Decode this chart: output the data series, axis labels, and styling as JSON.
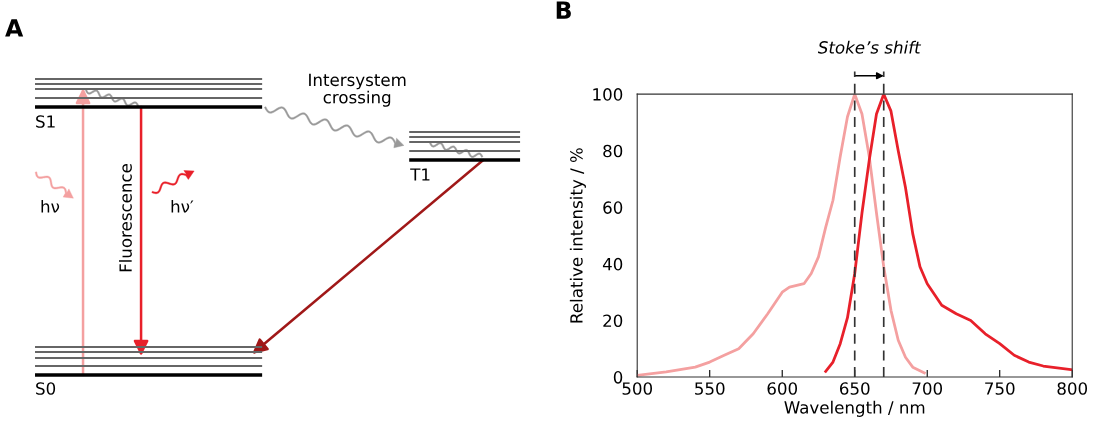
{
  "chart_data": [
    {
      "type": "other",
      "title": "A",
      "annotations": [
        "S1",
        "S0",
        "T1",
        "hν",
        "hν′",
        "Fluorescence",
        "Intersystem\ncrossing"
      ]
    },
    {
      "type": "line",
      "title": "B",
      "xlabel": "Wavelength / nm",
      "ylabel": "Relative intensity / %",
      "xlim": [
        500,
        800
      ],
      "ylim": [
        0,
        100
      ],
      "xticks": [
        500,
        550,
        600,
        650,
        700,
        750,
        800
      ],
      "yticks": [
        0,
        20,
        40,
        60,
        80,
        100
      ],
      "grid": false,
      "legend": false,
      "marker": "none",
      "line_style": "solid",
      "series": [
        {
          "color": "#f4a0a0",
          "x": [
            500,
            520,
            540,
            550,
            560,
            570,
            580,
            590,
            600,
            605,
            615,
            620,
            625,
            630,
            635,
            640,
            645,
            650,
            655,
            660,
            665,
            670,
            675,
            680,
            685,
            690,
            698
          ],
          "values": [
            0.6,
            1.8,
            3.5,
            5.3,
            7.7,
            10,
            15.3,
            22.4,
            30,
            31.8,
            33,
            36.6,
            42.5,
            53,
            62.5,
            78,
            92,
            100,
            93,
            78,
            58,
            39,
            23.6,
            13,
            7,
            3.5,
            1.5
          ]
        },
        {
          "color": "#e8202a",
          "x": [
            630,
            635,
            640,
            645,
            650,
            655,
            660,
            665,
            670,
            675,
            680,
            685,
            690,
            695,
            700,
            710,
            720,
            730,
            740,
            750,
            760,
            770,
            780,
            800
          ],
          "values": [
            2,
            5.3,
            11.8,
            21,
            36.6,
            58,
            76.6,
            93,
            100,
            94,
            80,
            67,
            50.7,
            39,
            33,
            25.4,
            22.4,
            20,
            15.3,
            11.8,
            7.7,
            5.3,
            3.9,
            2.6
          ]
        }
      ],
      "ref_lines": [
        {
          "axis": "x",
          "value": 650,
          "color": "#333333",
          "line_style": "dashed"
        },
        {
          "axis": "x",
          "value": 670,
          "color": "#333333",
          "line_style": "dashed"
        }
      ],
      "annotations": [
        "Stoke’s shift"
      ]
    }
  ]
}
